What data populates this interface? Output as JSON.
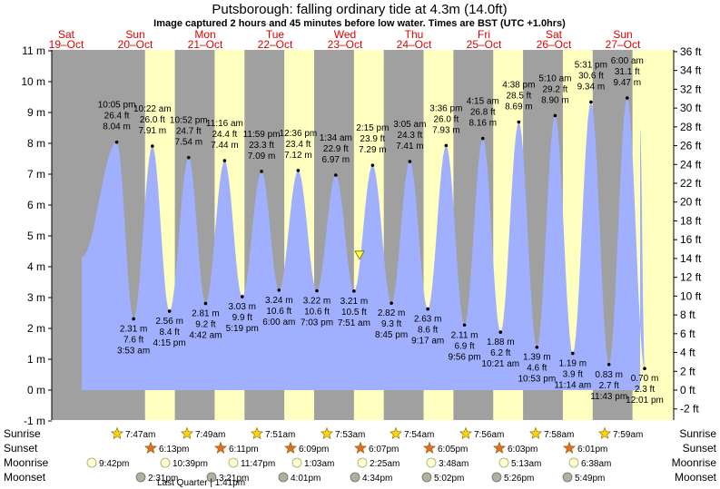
{
  "header": {
    "title": "Putsborough: falling  ordinary tide at 4.3m (14.0ft)",
    "subtitle": "Image captured 2 hours and 45 minutes before low water. Times are BST (UTC +1.0hrs)"
  },
  "chart_data": {
    "type": "area",
    "title": "Putsborough: falling  ordinary tide at 4.3m (14.0ft)",
    "ylim_m": [
      -1,
      11
    ],
    "ylim_ft": [
      -3,
      36
    ],
    "left_ticks": [
      "-1 m",
      "0 m",
      "1 m",
      "2 m",
      "3 m",
      "4 m",
      "5 m",
      "6 m",
      "7 m",
      "8 m",
      "9 m",
      "10 m",
      "11 m"
    ],
    "right_ticks": [
      "-2 ft",
      "0 ft",
      "2 ft",
      "4 ft",
      "6 ft",
      "8 ft",
      "10 ft",
      "12 ft",
      "14 ft",
      "16 ft",
      "18 ft",
      "20 ft",
      "22 ft",
      "24 ft",
      "26 ft",
      "28 ft",
      "30 ft",
      "32 ft",
      "34 ft",
      "36 ft"
    ],
    "days": [
      {
        "dow": "Sat",
        "date": "19–Oct"
      },
      {
        "dow": "Sun",
        "date": "20–Oct"
      },
      {
        "dow": "Mon",
        "date": "21–Oct"
      },
      {
        "dow": "Tue",
        "date": "22–Oct"
      },
      {
        "dow": "Wed",
        "date": "23–Oct"
      },
      {
        "dow": "Thu",
        "date": "24–Oct"
      },
      {
        "dow": "Fri",
        "date": "25–Oct"
      },
      {
        "dow": "Sat",
        "date": "26–Oct"
      },
      {
        "dow": "Sun",
        "date": "27–Oct"
      }
    ],
    "tides": [
      {
        "type": "high",
        "time": "10:05 pm",
        "ft": "26.4 ft",
        "m": 8.04
      },
      {
        "type": "low",
        "time": "3:53 am",
        "ft": "7.6 ft",
        "m": 2.31
      },
      {
        "type": "high",
        "time": "10:22 am",
        "ft": "26.0 ft",
        "m": 7.91
      },
      {
        "type": "low",
        "time": "4:15 pm",
        "ft": "8.4 ft",
        "m": 2.56
      },
      {
        "type": "high",
        "time": "10:52 pm",
        "ft": "24.7 ft",
        "m": 7.54
      },
      {
        "type": "low",
        "time": "4:42 am",
        "ft": "9.2 ft",
        "m": 2.81
      },
      {
        "type": "high",
        "time": "11:16 am",
        "ft": "24.4 ft",
        "m": 7.44
      },
      {
        "type": "low",
        "time": "5:19 pm",
        "ft": "9.9 ft",
        "m": 3.03
      },
      {
        "type": "high",
        "time": "11:59 pm",
        "ft": "23.3 ft",
        "m": 7.09
      },
      {
        "type": "low",
        "time": "6:00 am",
        "ft": "10.6 ft",
        "m": 3.24
      },
      {
        "type": "high",
        "time": "12:36 pm",
        "ft": "23.4 ft",
        "m": 7.12
      },
      {
        "type": "low",
        "time": "7:03 pm",
        "ft": "10.6 ft",
        "m": 3.22
      },
      {
        "type": "high",
        "time": "1:34 am",
        "ft": "22.9 ft",
        "m": 6.97
      },
      {
        "type": "low",
        "time": "7:51 am",
        "ft": "10.5 ft",
        "m": 3.21
      },
      {
        "type": "high",
        "time": "2:15 pm",
        "ft": "23.9 ft",
        "m": 7.29
      },
      {
        "type": "low",
        "time": "8:45 pm",
        "ft": "9.3 ft",
        "m": 2.82
      },
      {
        "type": "high",
        "time": "3:05 am",
        "ft": "24.3 ft",
        "m": 7.41
      },
      {
        "type": "low",
        "time": "9:17 am",
        "ft": "8.6 ft",
        "m": 2.63
      },
      {
        "type": "high",
        "time": "3:36 pm",
        "ft": "26.0 ft",
        "m": 7.93
      },
      {
        "type": "low",
        "time": "9:56 pm",
        "ft": "6.9 ft",
        "m": 2.11
      },
      {
        "type": "high",
        "time": "4:15 am",
        "ft": "26.8 ft",
        "m": 8.16
      },
      {
        "type": "low",
        "time": "10:21 am",
        "ft": "6.2 ft",
        "m": 1.88
      },
      {
        "type": "high",
        "time": "4:38 pm",
        "ft": "28.5 ft",
        "m": 8.69
      },
      {
        "type": "low",
        "time": "10:53 pm",
        "ft": "4.6 ft",
        "m": 1.39
      },
      {
        "type": "high",
        "time": "5:10 am",
        "ft": "29.2 ft",
        "m": 8.9
      },
      {
        "type": "low",
        "time": "11:14 am",
        "ft": "3.9 ft",
        "m": 1.19
      },
      {
        "type": "high",
        "time": "5:31 pm",
        "ft": "30.6 ft",
        "m": 9.34
      },
      {
        "type": "low",
        "time": "11:43 pm",
        "ft": "2.7 ft",
        "m": 0.83
      },
      {
        "type": "high",
        "time": "6:00 am",
        "ft": "31.1 ft",
        "m": 9.47
      },
      {
        "type": "low",
        "time": "12:01 pm",
        "ft": "2.3 ft",
        "m": 0.7
      }
    ],
    "current": {
      "m": 4.3,
      "ft": 14.0,
      "label": "falling ordinary tide"
    },
    "rows": {
      "labels": [
        "Sunrise",
        "Sunset",
        "Moonrise",
        "Moonset"
      ],
      "sunrise": [
        "7:47am",
        "7:49am",
        "7:51am",
        "7:53am",
        "7:54am",
        "7:56am",
        "7:58am",
        "7:59am"
      ],
      "sunset": [
        "6:13pm",
        "6:11pm",
        "6:09pm",
        "6:07pm",
        "6:05pm",
        "6:03pm",
        "6:01pm"
      ],
      "moonrise": [
        "9:42pm",
        "10:39pm",
        "11:47pm",
        "1:03am",
        "2:25am",
        "3:48am",
        "5:13am",
        "6:38am"
      ],
      "moonset": [
        "2:31pm",
        "3:21pm",
        "4:01pm",
        "4:34pm",
        "5:02pm",
        "5:26pm",
        "5:49pm"
      ],
      "moon_phase": "Last Quarter | 1:41pm"
    },
    "colors": {
      "night": "#a0a0a0",
      "day": "#ffffc0",
      "water": "#a0b0ff",
      "day_label": "#e00000",
      "sun": "#ffd700",
      "sunset": "#e07020"
    }
  }
}
